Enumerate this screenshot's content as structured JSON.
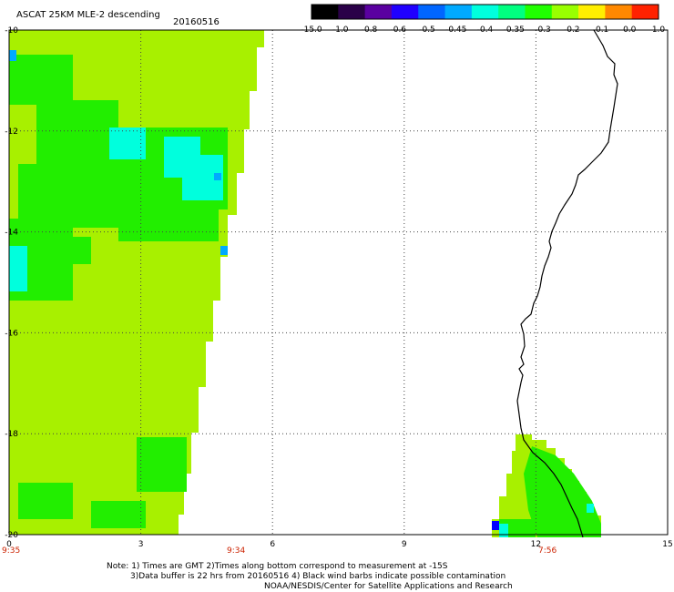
{
  "header": {
    "title": "ASCAT 25KM MLE-2 descending",
    "date": "20160516"
  },
  "colorbar": {
    "labels": [
      "-15.0",
      "-1.0",
      "-0.8",
      "-0.6",
      "-0.5",
      "-0.45",
      "-0.4",
      "-0.35",
      "-0.3",
      "-0.2",
      "-0.1",
      "0.0",
      "1.0"
    ],
    "colors": [
      "#000000",
      "#2a0048",
      "#5a00a0",
      "#2000ff",
      "#0066ff",
      "#00aaff",
      "#00ffdd",
      "#00ff80",
      "#20ff00",
      "#99ff00",
      "#ffee00",
      "#ff8800",
      "#ff2200"
    ]
  },
  "axes": {
    "x_ticks": [
      "0",
      "3",
      "6",
      "9",
      "12",
      "15"
    ],
    "y_ticks": [
      "-10",
      "-12",
      "-14",
      "-16",
      "-18",
      "-20"
    ],
    "x_range": [
      0,
      15
    ],
    "y_range": [
      -20,
      -10
    ],
    "grid": true
  },
  "time_labels": [
    "9:35",
    "9:34",
    "7:56"
  ],
  "notes": {
    "line1": "Note: 1) Times are GMT 2)Times along bottom correspond to measurement at -15S",
    "line2": "3)Data buffer is 22 hrs from 20160516 4) Black wind barbs indicate possible contamination",
    "line3": "NOAA/NESDIS/Center for Satellite Applications and Research"
  },
  "colors": {
    "swath_main": "#a8f000",
    "swath_green": "#22ee00",
    "swath_cyan": "#00ffdd",
    "swath_blue": "#00aaff",
    "time_label": "#cc2200",
    "coastline": "#000000"
  }
}
